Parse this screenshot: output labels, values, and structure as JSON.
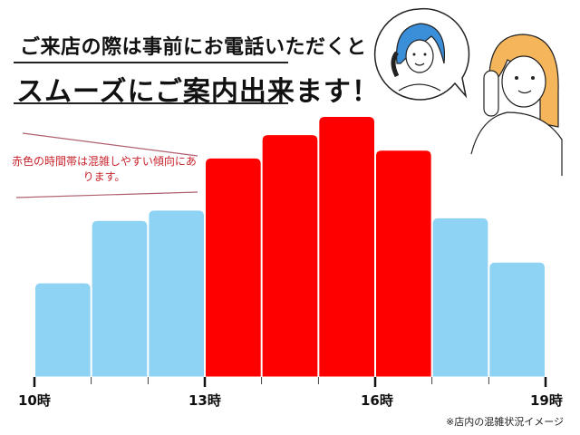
{
  "header": {
    "line1": "ご来店の際は事前にお電話いただくと",
    "line2": "スムーズにご案内出来ます！"
  },
  "annotation": "赤色の時間帯は混雑しやすい傾向にあります。",
  "caption": "※店内の混雑状況イメージ",
  "illustration": {
    "icons": [
      "staff-on-phone-icon",
      "customer-on-phone-icon",
      "speech-bubble-icon"
    ]
  },
  "chart_data": {
    "type": "bar",
    "x_ticks": [
      "10時",
      "13時",
      "16時",
      "19時"
    ],
    "bins_start_hour": [
      10,
      11,
      12,
      13,
      14,
      15,
      16,
      17,
      18
    ],
    "values": [
      36,
      60,
      64,
      84,
      93,
      100,
      87,
      61,
      44
    ],
    "busy": [
      false,
      false,
      false,
      true,
      true,
      true,
      true,
      false,
      false
    ],
    "xlim": [
      10,
      19
    ],
    "ylim": [
      0,
      100
    ],
    "colors": {
      "normal": "#8fd3f4",
      "busy": "#ff0000"
    },
    "grid": false,
    "title": "",
    "xlabel": "",
    "ylabel": ""
  }
}
